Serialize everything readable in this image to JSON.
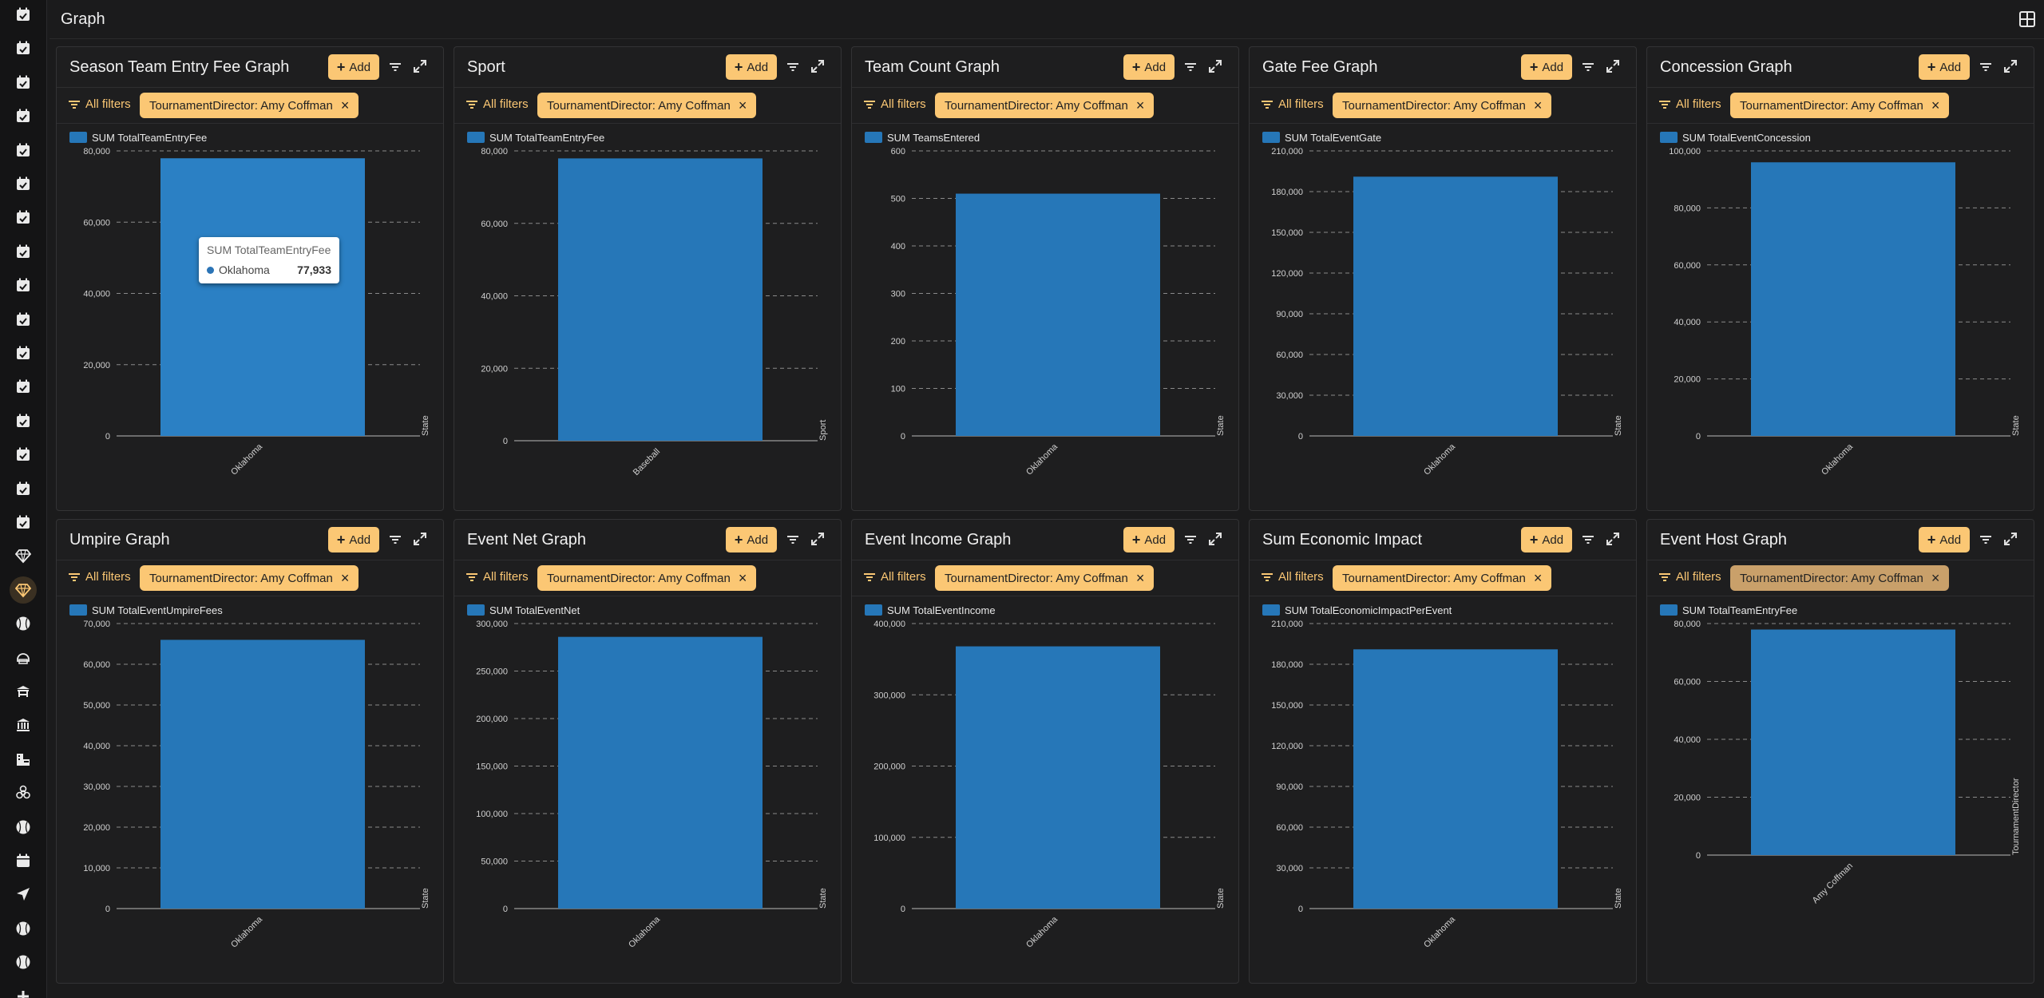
{
  "page": {
    "title": "Graph"
  },
  "colors": {
    "accent": "#fbc774",
    "bar": "#2677b8",
    "background": "#1b1b1c"
  },
  "sidebar": {
    "items": [
      {
        "icon": "calendar-check-icon"
      },
      {
        "icon": "calendar-check-icon"
      },
      {
        "icon": "calendar-check-icon"
      },
      {
        "icon": "calendar-check-icon"
      },
      {
        "icon": "calendar-check-icon"
      },
      {
        "icon": "calendar-check-icon"
      },
      {
        "icon": "calendar-check-icon"
      },
      {
        "icon": "calendar-check-icon"
      },
      {
        "icon": "calendar-check-icon"
      },
      {
        "icon": "calendar-check-icon"
      },
      {
        "icon": "calendar-check-icon"
      },
      {
        "icon": "calendar-check-icon"
      },
      {
        "icon": "calendar-check-icon"
      },
      {
        "icon": "calendar-check-icon"
      },
      {
        "icon": "calendar-check-icon"
      },
      {
        "icon": "calendar-check-icon"
      },
      {
        "icon": "gem-icon"
      },
      {
        "icon": "gem-icon",
        "active": true
      },
      {
        "icon": "baseball-icon"
      },
      {
        "icon": "helmet-icon"
      },
      {
        "icon": "dugout-icon"
      },
      {
        "icon": "bank-icon"
      },
      {
        "icon": "building-bed-icon"
      },
      {
        "icon": "biohazard-icon"
      },
      {
        "icon": "baseball-icon"
      },
      {
        "icon": "calendar-icon"
      },
      {
        "icon": "send-icon"
      },
      {
        "icon": "baseball-icon"
      },
      {
        "icon": "baseball-icon"
      },
      {
        "icon": "plus-icon"
      }
    ]
  },
  "common": {
    "add_label": "Add",
    "all_filters_label": "All filters",
    "filter_chip": "TournamentDirector: Amy Coffman"
  },
  "panels": [
    {
      "title": "Season Team Entry Fee Graph"
    },
    {
      "title": "Sport"
    },
    {
      "title": "Team Count Graph"
    },
    {
      "title": "Gate Fee Graph"
    },
    {
      "title": "Concession Graph"
    },
    {
      "title": "Umpire Graph"
    },
    {
      "title": "Event Net Graph"
    },
    {
      "title": "Event Income Graph"
    },
    {
      "title": "Sum Economic Impact"
    },
    {
      "title": "Event Host Graph"
    }
  ],
  "tooltip": {
    "title": "SUM TotalTeamEntryFee",
    "category": "Oklahoma",
    "value": "77,933"
  },
  "chart_data": [
    {
      "type": "bar",
      "legend": "SUM TotalTeamEntryFee",
      "categories": [
        "Oklahoma"
      ],
      "values": [
        77933
      ],
      "xlabel": "State",
      "ylim": [
        0,
        80000
      ],
      "yticks": [
        0,
        20000,
        40000,
        60000,
        80000
      ],
      "grid": true,
      "legend_position": "top-left"
    },
    {
      "type": "bar",
      "legend": "SUM TotalTeamEntryFee",
      "categories": [
        "Baseball"
      ],
      "values": [
        77933
      ],
      "xlabel": "Sport",
      "ylim": [
        0,
        80000
      ],
      "yticks": [
        0,
        20000,
        40000,
        60000,
        80000
      ],
      "grid": true,
      "legend_position": "top-left"
    },
    {
      "type": "bar",
      "legend": "SUM TeamsEntered",
      "categories": [
        "Oklahoma"
      ],
      "values": [
        510
      ],
      "xlabel": "State",
      "ylim": [
        0,
        600
      ],
      "yticks": [
        0,
        100,
        200,
        300,
        400,
        500,
        600
      ],
      "grid": true,
      "legend_position": "top-left"
    },
    {
      "type": "bar",
      "legend": "SUM TotalEventGate",
      "categories": [
        "Oklahoma"
      ],
      "values": [
        191000
      ],
      "xlabel": "State",
      "ylim": [
        0,
        210000
      ],
      "yticks": [
        0,
        30000,
        60000,
        90000,
        120000,
        150000,
        180000,
        210000
      ],
      "grid": true,
      "legend_position": "top-left"
    },
    {
      "type": "bar",
      "legend": "SUM TotalEventConcession",
      "categories": [
        "Oklahoma"
      ],
      "values": [
        96000
      ],
      "xlabel": "State",
      "ylim": [
        0,
        100000
      ],
      "yticks": [
        0,
        20000,
        40000,
        60000,
        80000,
        100000
      ],
      "grid": true,
      "legend_position": "top-left"
    },
    {
      "type": "bar",
      "legend": "SUM TotalEventUmpireFees",
      "categories": [
        "Oklahoma"
      ],
      "values": [
        66000
      ],
      "xlabel": "State",
      "ylim": [
        0,
        70000
      ],
      "yticks": [
        0,
        10000,
        20000,
        30000,
        40000,
        50000,
        60000,
        70000
      ],
      "grid": true,
      "legend_position": "top-left"
    },
    {
      "type": "bar",
      "legend": "SUM TotalEventNet",
      "categories": [
        "Oklahoma"
      ],
      "values": [
        286000
      ],
      "xlabel": "State",
      "ylim": [
        0,
        300000
      ],
      "yticks": [
        0,
        50000,
        100000,
        150000,
        200000,
        250000,
        300000
      ],
      "grid": true,
      "legend_position": "top-left"
    },
    {
      "type": "bar",
      "legend": "SUM TotalEventIncome",
      "categories": [
        "Oklahoma"
      ],
      "values": [
        368000
      ],
      "xlabel": "State",
      "ylim": [
        0,
        400000
      ],
      "yticks": [
        0,
        100000,
        200000,
        300000,
        400000
      ],
      "grid": true,
      "legend_position": "top-left"
    },
    {
      "type": "bar",
      "legend": "SUM TotalEconomicImpactPerEvent",
      "categories": [
        "Oklahoma"
      ],
      "values": [
        191000
      ],
      "xlabel": "State",
      "ylim": [
        0,
        210000
      ],
      "yticks": [
        0,
        30000,
        60000,
        90000,
        120000,
        150000,
        180000,
        210000
      ],
      "grid": true,
      "legend_position": "top-left"
    },
    {
      "type": "bar",
      "legend": "SUM TotalTeamEntryFee",
      "categories": [
        "Amy Coffman"
      ],
      "values": [
        77933
      ],
      "xlabel": "TournamentDirector",
      "ylim": [
        0,
        80000
      ],
      "yticks": [
        0,
        20000,
        40000,
        60000,
        80000
      ],
      "grid": true,
      "legend_position": "top-left"
    }
  ]
}
